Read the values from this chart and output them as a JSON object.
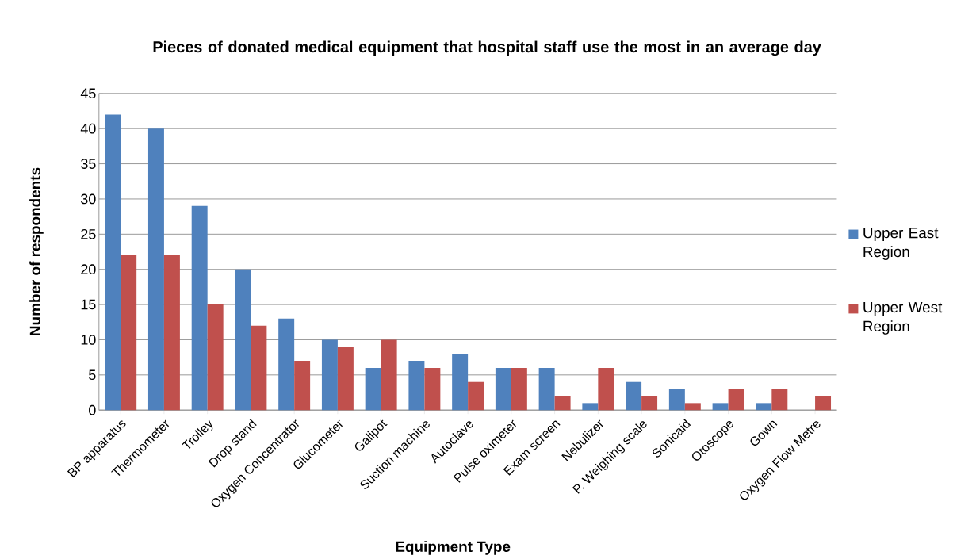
{
  "chart_data": {
    "type": "bar",
    "title": "Pieces of donated medical equipment that hospital staff use the most in an average day",
    "xlabel": "Equipment Type",
    "ylabel": "Number of respondents",
    "categories": [
      "BP apparatus",
      "Thermometer",
      "Trolley",
      "Drop stand",
      "Oxygen Concentrator",
      "Glucometer",
      "Galipot",
      "Suction machine",
      "Autoclave",
      "Pulse oximeter",
      "Exam screen",
      "Nebulizer",
      "P. Weighing scale",
      "Sonicaid",
      "Otoscope",
      "Gown",
      "Oxygen Flow Metre"
    ],
    "series": [
      {
        "name": "Upper East Region",
        "color": "#4f81bd",
        "values": [
          42,
          40,
          29,
          20,
          13,
          10,
          6,
          7,
          8,
          6,
          6,
          1,
          4,
          3,
          1,
          1,
          0
        ]
      },
      {
        "name": "Upper West Region",
        "color": "#c0504d",
        "values": [
          22,
          22,
          15,
          12,
          7,
          9,
          10,
          6,
          4,
          6,
          2,
          6,
          2,
          1,
          3,
          3,
          2
        ]
      }
    ],
    "ylim": [
      0,
      45
    ],
    "yticks": [
      0,
      5,
      10,
      15,
      20,
      25,
      30,
      35,
      40,
      45
    ],
    "grid": "y",
    "legend": "right"
  }
}
